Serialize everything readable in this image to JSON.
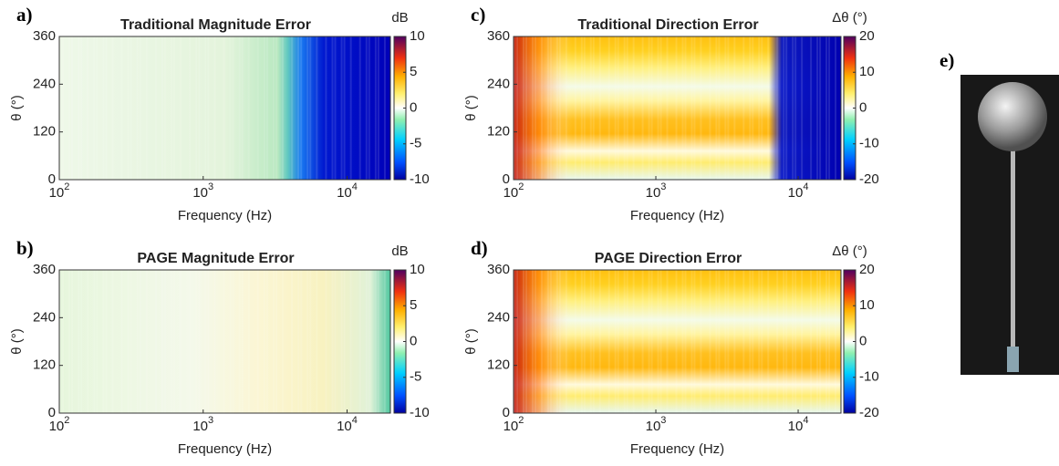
{
  "chart_data": [
    {
      "type": "heatmap",
      "panel_label": "a)",
      "title": "Traditional Magnitude Error",
      "xlabel": "Frequency (Hz)",
      "ylabel": "θ (°)",
      "xscale": "log",
      "xlim": [
        100,
        20000
      ],
      "xticks": [
        {
          "value": 100,
          "label": "10^2"
        },
        {
          "value": 1000,
          "label": "10^3"
        },
        {
          "value": 10000,
          "label": "10^4"
        }
      ],
      "ylim": [
        0,
        360
      ],
      "yticks": [
        0,
        120,
        240,
        360
      ],
      "colorbar": {
        "label": "dB",
        "lim": [
          -10,
          10
        ],
        "ticks": [
          10,
          5,
          0,
          -5,
          -10
        ]
      }
    },
    {
      "type": "heatmap",
      "panel_label": "b)",
      "title": "PAGE Magnitude Error",
      "xlabel": "Frequency (Hz)",
      "ylabel": "θ (°)",
      "xscale": "log",
      "xlim": [
        100,
        20000
      ],
      "xticks": [
        {
          "value": 100,
          "label": "10^2"
        },
        {
          "value": 1000,
          "label": "10^3"
        },
        {
          "value": 10000,
          "label": "10^4"
        }
      ],
      "ylim": [
        0,
        360
      ],
      "yticks": [
        0,
        120,
        240,
        360
      ],
      "colorbar": {
        "label": "dB",
        "lim": [
          -10,
          10
        ],
        "ticks": [
          10,
          5,
          0,
          -5,
          -10
        ]
      }
    },
    {
      "type": "heatmap",
      "panel_label": "c)",
      "title": "Traditional Direction Error",
      "xlabel": "Frequency (Hz)",
      "ylabel": "θ (°)",
      "xscale": "log",
      "xlim": [
        100,
        20000
      ],
      "xticks": [
        {
          "value": 100,
          "label": "10^2"
        },
        {
          "value": 1000,
          "label": "10^3"
        },
        {
          "value": 10000,
          "label": "10^4"
        }
      ],
      "ylim": [
        0,
        360
      ],
      "yticks": [
        0,
        120,
        240,
        360
      ],
      "colorbar": {
        "label": "Δθ (°)",
        "lim": [
          -20,
          20
        ],
        "ticks": [
          20,
          10,
          0,
          -10,
          -20
        ]
      }
    },
    {
      "type": "heatmap",
      "panel_label": "d)",
      "title": "PAGE Direction Error",
      "xlabel": "Frequency (Hz)",
      "ylabel": "θ (°)",
      "xscale": "log",
      "xlim": [
        100,
        20000
      ],
      "xticks": [
        {
          "value": 100,
          "label": "10^2"
        },
        {
          "value": 1000,
          "label": "10^3"
        },
        {
          "value": 10000,
          "label": "10^4"
        }
      ],
      "ylim": [
        0,
        360
      ],
      "yticks": [
        0,
        120,
        240,
        360
      ],
      "colorbar": {
        "label": "Δθ (°)",
        "lim": [
          -20,
          20
        ],
        "ticks": [
          20,
          10,
          0,
          -10,
          -20
        ]
      }
    }
  ],
  "photo_label": "e)"
}
